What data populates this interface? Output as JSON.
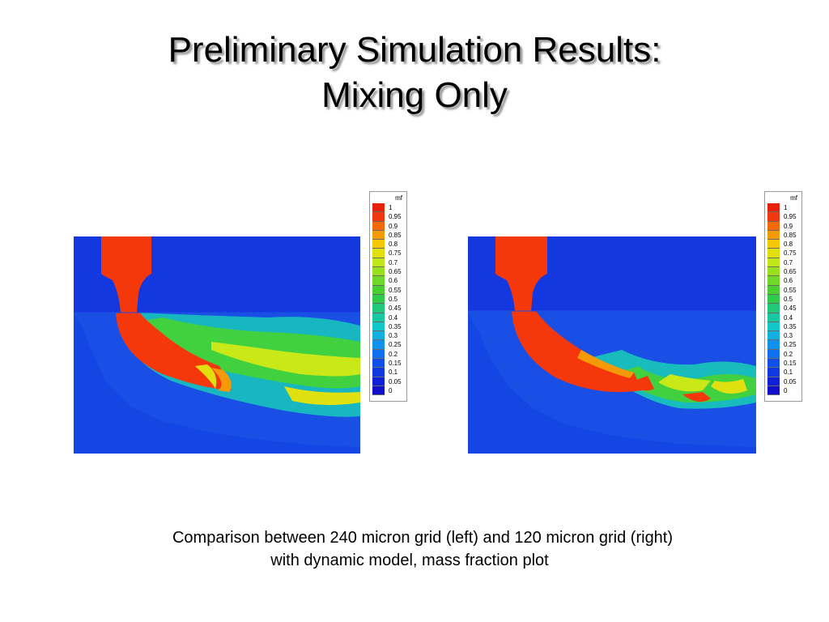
{
  "slide": {
    "title_line1": "Preliminary Simulation Results:",
    "title_line2": "Mixing Only",
    "caption_line1": "Comparison between 240 micron grid (left) and 120 micron grid (right)",
    "caption_line2": "with dynamic model, mass fraction plot"
  },
  "legend": {
    "title": "mf",
    "levels": [
      "1",
      "0.95",
      "0.9",
      "0.85",
      "0.8",
      "0.75",
      "0.7",
      "0.65",
      "0.6",
      "0.55",
      "0.5",
      "0.45",
      "0.4",
      "0.35",
      "0.3",
      "0.25",
      "0.2",
      "0.15",
      "0.1",
      "0.05",
      "0"
    ],
    "colors": [
      "#e8200c",
      "#f03810",
      "#f46a0a",
      "#f49a08",
      "#f2c808",
      "#e0e010",
      "#c0e818",
      "#98e020",
      "#70d828",
      "#48d030",
      "#2ccc48",
      "#20c878",
      "#18c8a0",
      "#10c8c8",
      "#10b0e0",
      "#1090f0",
      "#1070f0",
      "#1050e8",
      "#1038e0",
      "#1020d8",
      "#1010c8"
    ]
  },
  "colors": {
    "background": "#1a4fe6",
    "ambient": "#1438e0",
    "jet": "#f4380c"
  }
}
